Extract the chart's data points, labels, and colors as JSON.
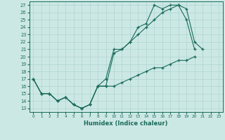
{
  "xlabel": "Humidex (Indice chaleur)",
  "xlim": [
    -0.5,
    23.5
  ],
  "ylim": [
    12.5,
    27.5
  ],
  "xticks": [
    0,
    1,
    2,
    3,
    4,
    5,
    6,
    7,
    8,
    9,
    10,
    11,
    12,
    13,
    14,
    15,
    16,
    17,
    18,
    19,
    20,
    21,
    22,
    23
  ],
  "yticks": [
    13,
    14,
    15,
    16,
    17,
    18,
    19,
    20,
    21,
    22,
    23,
    24,
    25,
    26,
    27
  ],
  "line_color": "#1a6b5a",
  "bg_color": "#cce8e5",
  "grid_color": "#aed4d0",
  "line1_x": [
    0,
    1,
    2,
    3,
    4,
    5,
    6,
    7,
    8,
    9,
    10,
    11,
    12,
    13,
    14,
    15,
    16,
    17,
    18,
    19,
    20,
    21,
    22
  ],
  "line1_y": [
    17,
    15,
    15,
    14,
    14.5,
    13.5,
    13,
    13.5,
    16,
    17,
    21,
    21,
    22,
    24,
    24.5,
    27,
    26.5,
    27,
    27,
    26.5,
    22,
    21,
    null
  ],
  "line2_x": [
    0,
    1,
    2,
    3,
    4,
    5,
    6,
    7,
    8,
    9,
    10,
    11,
    12,
    13,
    14,
    15,
    16,
    17,
    18,
    19,
    20
  ],
  "line2_y": [
    17,
    15,
    15,
    14,
    14.5,
    13.5,
    13,
    13.5,
    16,
    16,
    20.5,
    21,
    22,
    23,
    24,
    25,
    26,
    26.5,
    27,
    25,
    21
  ],
  "line3_x": [
    0,
    1,
    2,
    3,
    4,
    5,
    6,
    7,
    8,
    9,
    10,
    11,
    12,
    13,
    14,
    15,
    16,
    17,
    18,
    19,
    20,
    21,
    22,
    23
  ],
  "line3_y": [
    17,
    15,
    15,
    14,
    14.5,
    13.5,
    13,
    13.5,
    16,
    16,
    16,
    16.5,
    17,
    17.5,
    18,
    18.5,
    18.5,
    19,
    19.5,
    19.5,
    20,
    null,
    null,
    null
  ]
}
